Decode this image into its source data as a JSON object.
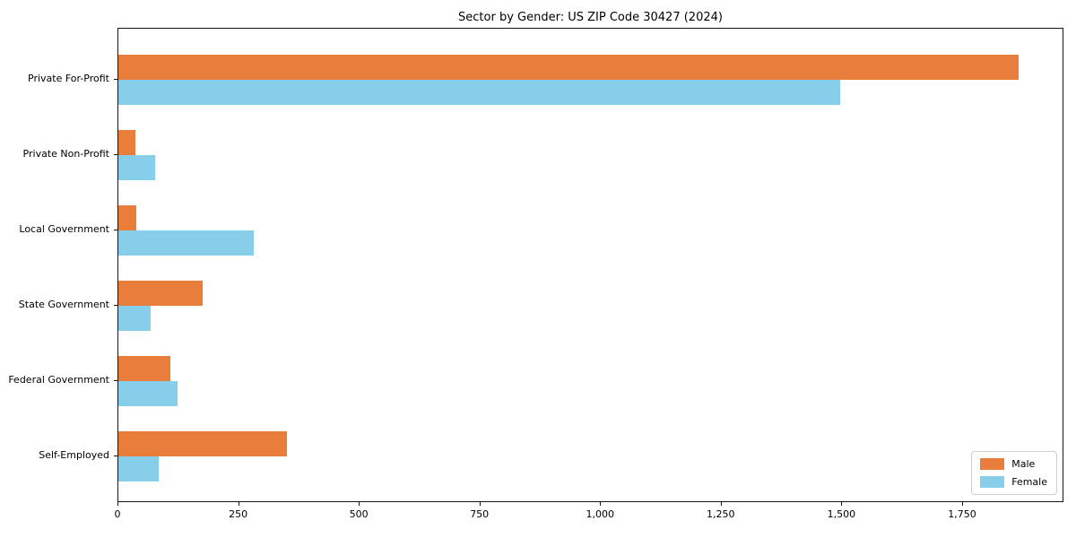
{
  "title": "Sector by Gender: US ZIP Code 30427 (2024)",
  "colors": {
    "male": "#e87d3c",
    "female": "#87ceeb",
    "axis": "#151515",
    "legend_border": "#cfcfcf",
    "background": "#ffffff",
    "text": "#000000"
  },
  "legend": {
    "position": "lower right",
    "entries": [
      "Male",
      "Female"
    ]
  },
  "chart_data": {
    "type": "bar",
    "orientation": "horizontal",
    "title": "Sector by Gender: US ZIP Code 30427 (2024)",
    "categories": [
      "Private For-Profit",
      "Private Non-Profit",
      "Local Government",
      "State Government",
      "Federal Government",
      "Self-Employed"
    ],
    "series": [
      {
        "name": "Male",
        "color": "#e87d3c",
        "values": [
          1865,
          36,
          37,
          175,
          107,
          350
        ]
      },
      {
        "name": "Female",
        "color": "#87ceeb",
        "values": [
          1495,
          76,
          280,
          66,
          122,
          83
        ]
      }
    ],
    "xlim": [
      0,
      1960
    ],
    "xticks": [
      0,
      250,
      500,
      750,
      1000,
      1250,
      1500,
      1750
    ],
    "xtick_labels": [
      "0",
      "250",
      "500",
      "750",
      "1,000",
      "1,250",
      "1,500",
      "1,750"
    ],
    "xlabel": "",
    "ylabel": "",
    "grid": false,
    "legend_position": "lower right"
  }
}
